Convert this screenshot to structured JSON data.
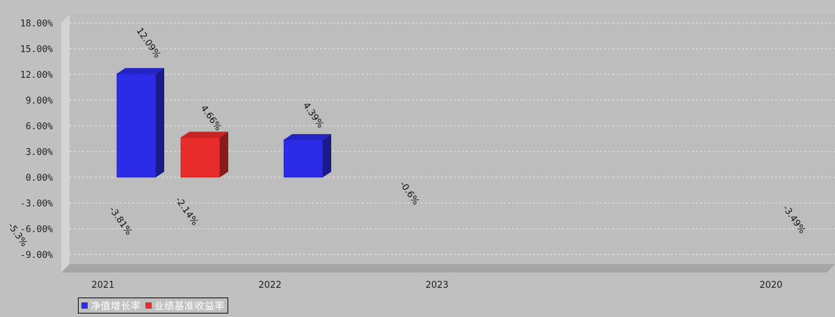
{
  "chart_data": {
    "type": "bar",
    "categories": [
      "2021",
      "2022",
      "2023",
      "2020"
    ],
    "series": [
      {
        "name": "净值增长率",
        "color": "#2b2be8",
        "values": [
          12.09,
          4.39,
          -3.81,
          -3.49
        ]
      },
      {
        "name": "业绩基准收益率",
        "color": "#e82b2b",
        "values": [
          4.66,
          -0.6,
          -2.14,
          -5.3
        ]
      }
    ],
    "ylim": [
      -9,
      18
    ],
    "yticks": [
      "18.00%",
      "15.00%",
      "12.00%",
      "9.00%",
      "6.00%",
      "3.00%",
      "0.00%",
      "-3.00%",
      "-6.00%",
      "-9.00%"
    ],
    "data_labels": [
      "12.09%",
      "4.66%",
      "4.39%",
      "-0.6%",
      "-3.81%",
      "-2.14%",
      "-3.49%",
      "-5.3%"
    ],
    "grid": true,
    "legend_position": "bottom-left"
  }
}
